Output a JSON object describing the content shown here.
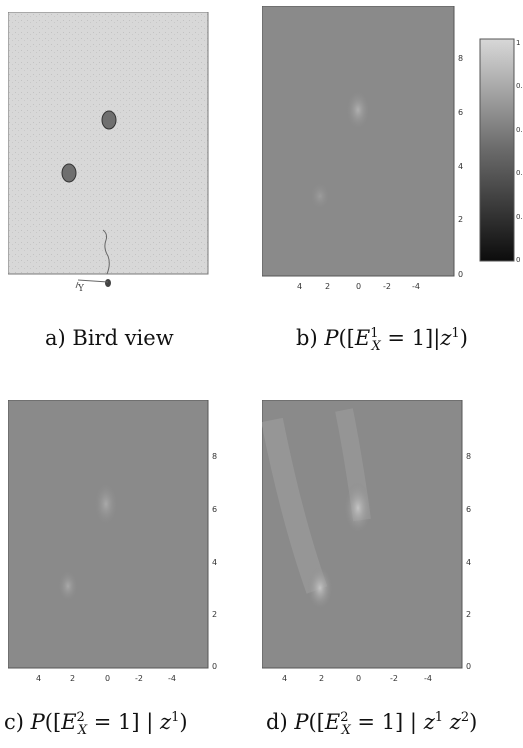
{
  "figure": {
    "panels": [
      {
        "id": "a",
        "caption": "a) Bird view"
      },
      {
        "id": "b",
        "caption_prefix": "b)",
        "caption_math": "P([E_X^1 = 1] | z^1)"
      },
      {
        "id": "c",
        "caption_prefix": "c)",
        "caption_math": "P([E_X^2 = 1] | z^1)"
      },
      {
        "id": "d",
        "caption_prefix": "d)",
        "caption_math": "P([E_X^2 = 1] | z^1 z^2)"
      }
    ],
    "x_ticks": [
      "4",
      "2",
      "0",
      "-2",
      "-4"
    ],
    "y_ticks": [
      "0",
      "2",
      "4",
      "6",
      "8"
    ],
    "colorbar_ticks": [
      "1",
      "0.",
      "0.",
      "0.",
      "0.",
      "0"
    ],
    "bird_view_label": "Y",
    "colors": {
      "map_bg": "#8a8a8a",
      "bird_bg": "#d6d6d6",
      "highlight": "#b5b5b5",
      "dark": "#1a1a1a"
    }
  }
}
